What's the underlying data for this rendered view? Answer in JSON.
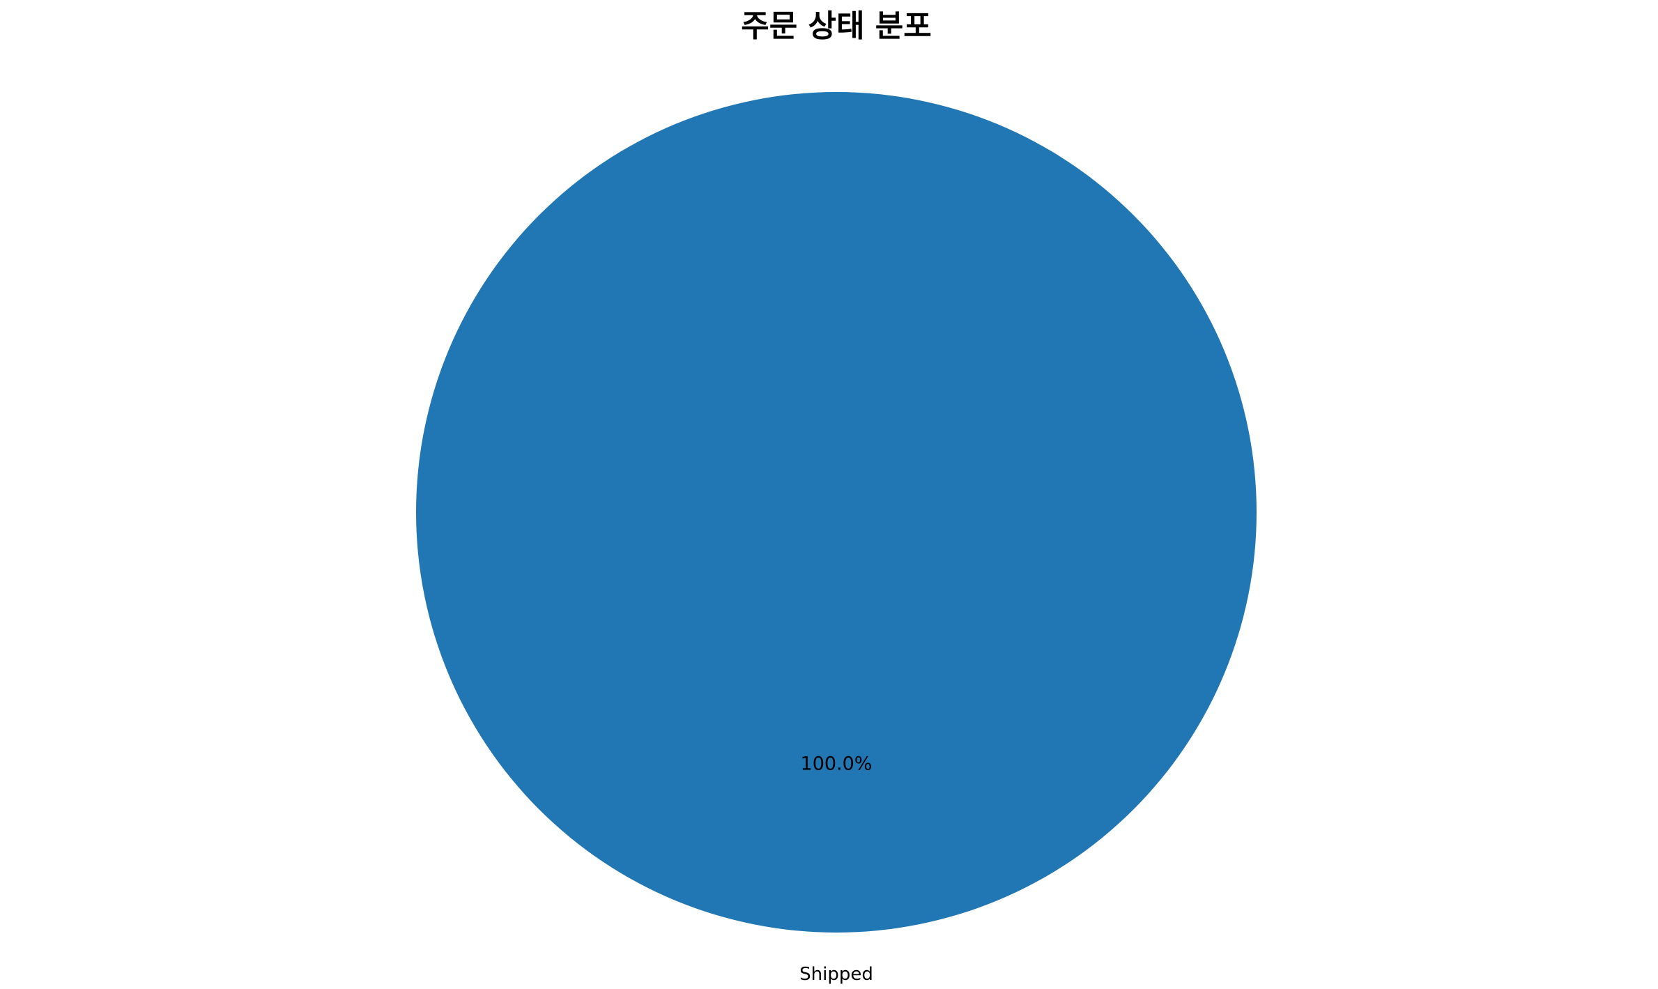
{
  "chart_data": {
    "type": "pie",
    "title": "주문 상태 분포",
    "categories": [
      "Shipped"
    ],
    "values": [
      100
    ],
    "percent_labels": [
      "100.0%"
    ],
    "colors": [
      "#2177b4"
    ],
    "legend": "none"
  }
}
